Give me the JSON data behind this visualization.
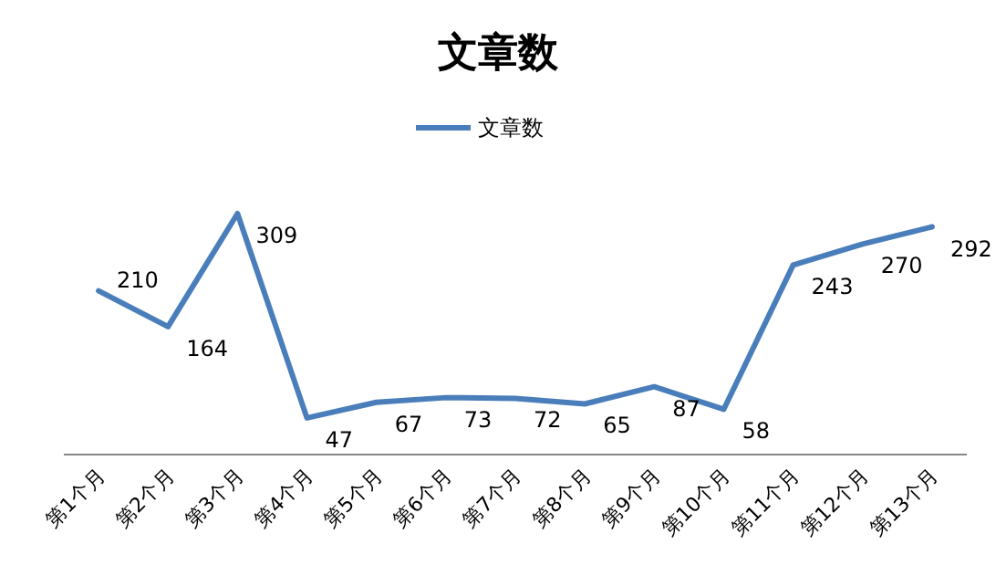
{
  "chart_data": {
    "type": "line",
    "title": "文章数",
    "categories": [
      "第1个月",
      "第2个月",
      "第3个月",
      "第4个月",
      "第5个月",
      "第6个月",
      "第7个月",
      "第8个月",
      "第9个月",
      "第10个月",
      "第11个月",
      "第12个月",
      "第13个月"
    ],
    "series": [
      {
        "name": "文章数",
        "color": "#4a7ebb",
        "values": [
          210,
          164,
          309,
          47,
          67,
          73,
          72,
          65,
          87,
          58,
          243,
          270,
          292
        ]
      }
    ],
    "data_labels": true,
    "legend": "top",
    "grid": false
  }
}
